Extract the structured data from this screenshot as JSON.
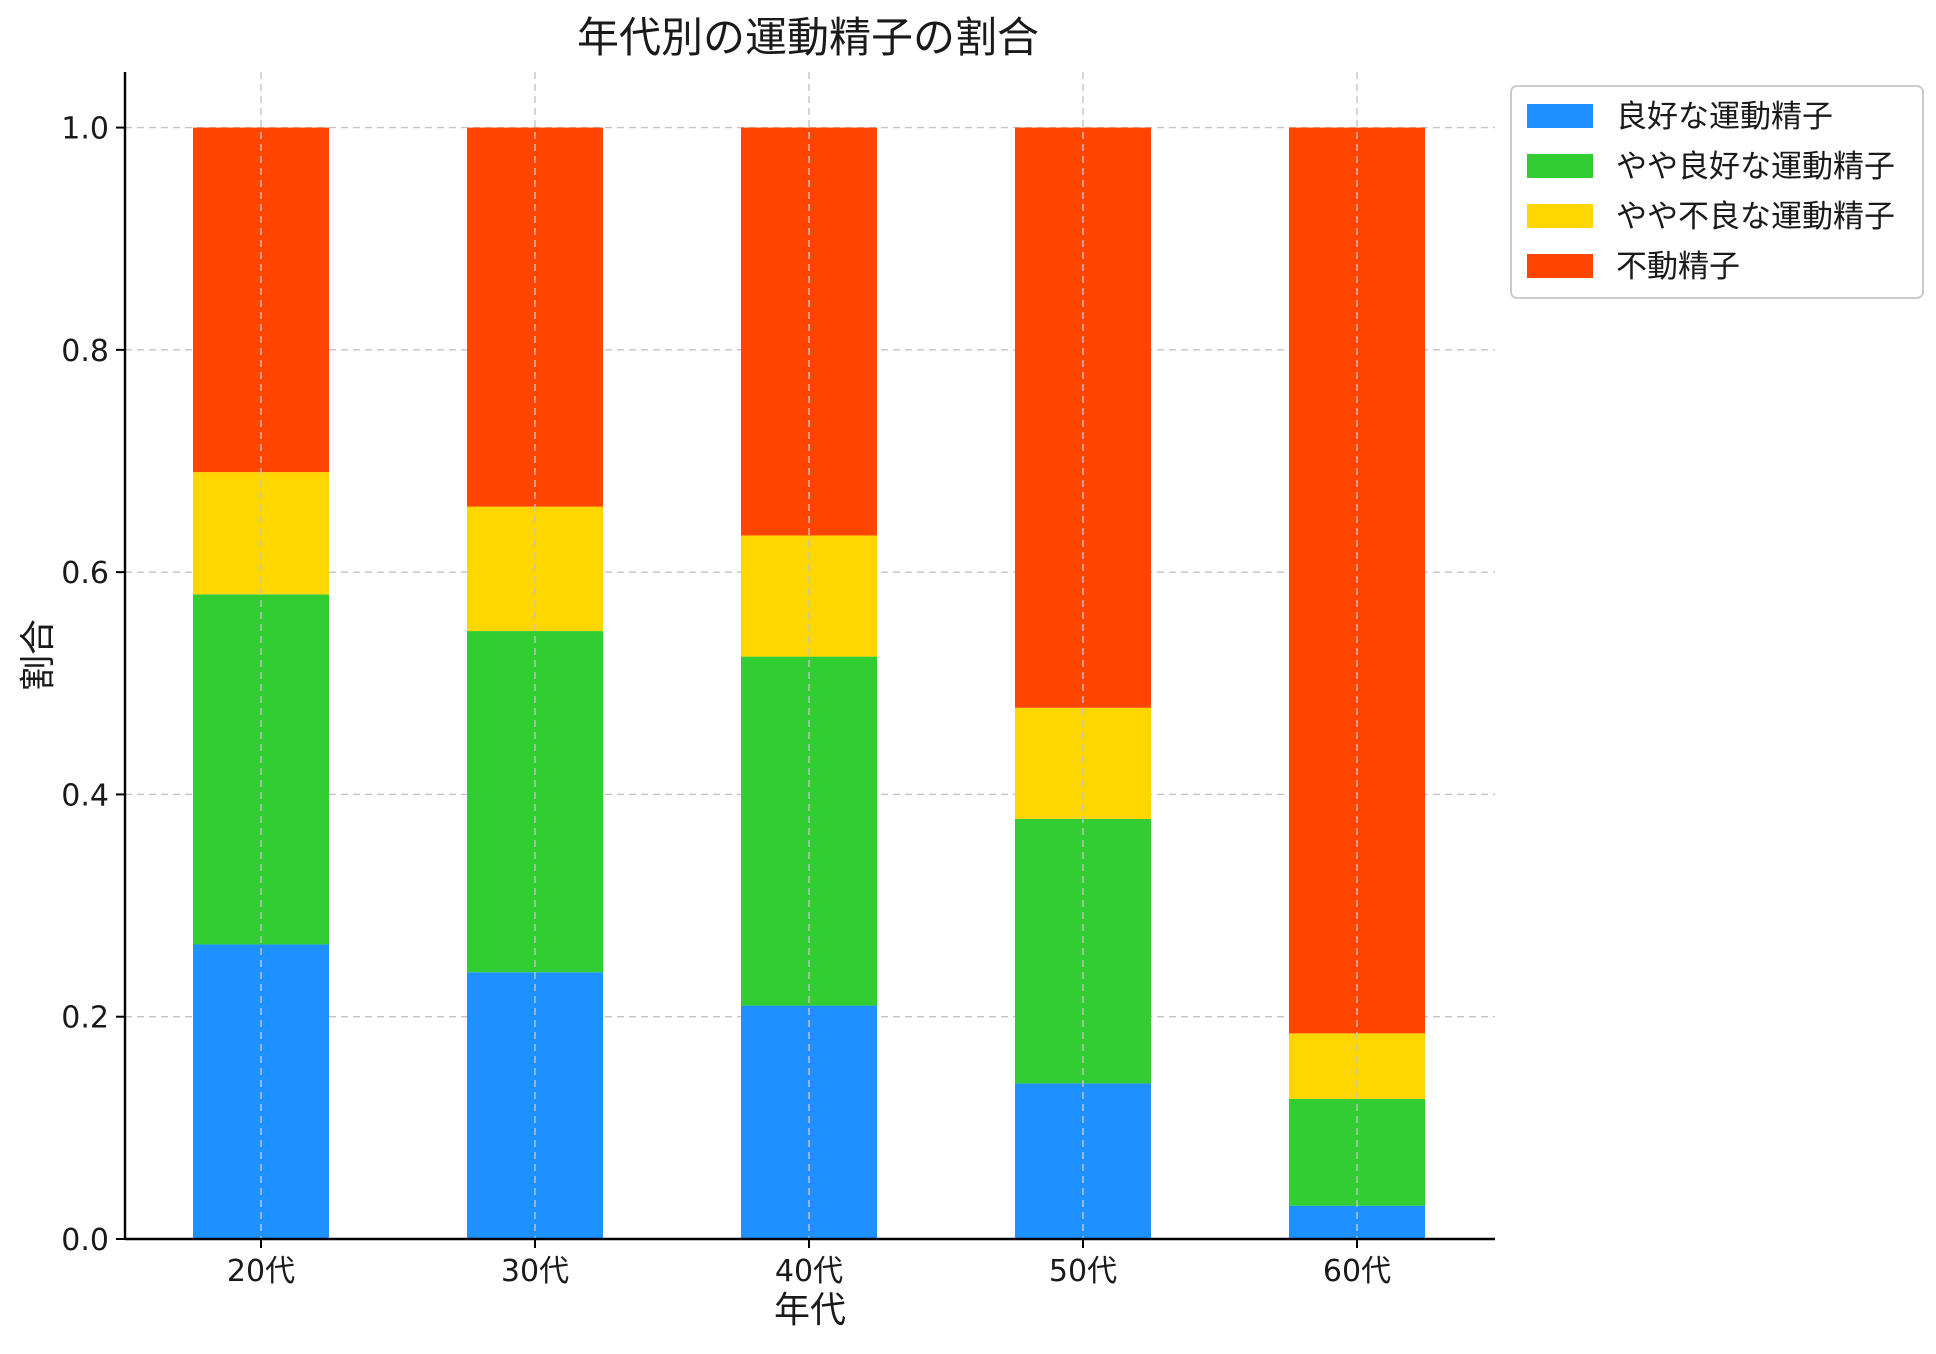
{
  "chart_data": {
    "type": "bar",
    "stacked": true,
    "title": "年代別の運動精子の割合",
    "xlabel": "年代",
    "ylabel": "割合",
    "categories": [
      "20代",
      "30代",
      "40代",
      "50代",
      "60代"
    ],
    "series": [
      {
        "name": "良好な運動精子",
        "color": "#1E90FF",
        "values": [
          0.265,
          0.24,
          0.21,
          0.14,
          0.03
        ]
      },
      {
        "name": "やや良好な運動精子",
        "color": "#32CD32",
        "values": [
          0.315,
          0.307,
          0.314,
          0.238,
          0.096
        ]
      },
      {
        "name": "やや不良な運動精子",
        "color": "#FFD700",
        "values": [
          0.11,
          0.112,
          0.109,
          0.1,
          0.059
        ]
      },
      {
        "name": "不動精子",
        "color": "#FF4500",
        "values": [
          0.31,
          0.341,
          0.367,
          0.522,
          0.815
        ]
      }
    ],
    "ylim": [
      0.0,
      1.05
    ],
    "yticks": [
      0.0,
      0.2,
      0.4,
      0.6,
      0.8,
      1.0
    ],
    "ytick_labels": [
      "0.0",
      "0.2",
      "0.4",
      "0.6",
      "0.8",
      "1.0"
    ],
    "grid": true,
    "legend_position": "top-right, outside plot area"
  }
}
